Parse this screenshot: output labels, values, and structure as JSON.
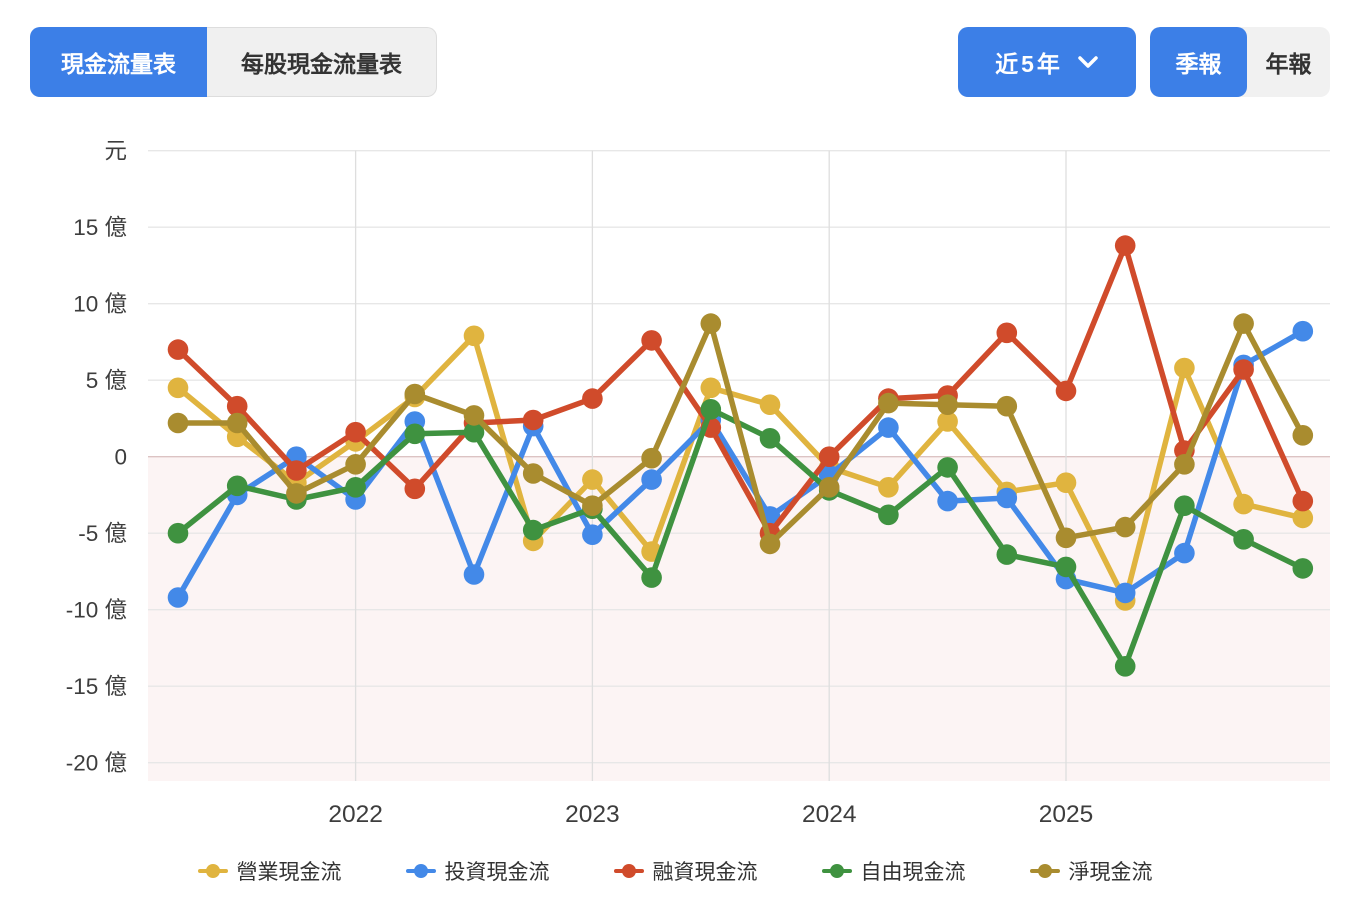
{
  "header": {
    "tabs": [
      {
        "label": "現金流量表",
        "active": true
      },
      {
        "label": "每股現金流量表",
        "active": false
      }
    ],
    "range_dropdown": {
      "label": "近5年",
      "icon": "chevron-down-icon"
    },
    "period_toggle": [
      {
        "label": "季報",
        "active": true
      },
      {
        "label": "年報",
        "active": false
      }
    ]
  },
  "colors": {
    "accent_blue": "#3C7FE7",
    "inactive_bg": "#F0F0F0",
    "grid_line": "#E7E7E7",
    "zero_line": "#DCC3C3",
    "year_line": "#DEDEDE",
    "axis_text": "#3D3D3D",
    "negative_region": "#FCF4F4"
  },
  "chart_data": {
    "type": "line",
    "unit_label": "元",
    "y_axis": {
      "tick_values": [
        15,
        10,
        5,
        0,
        -5,
        -10,
        -15,
        -20
      ],
      "tick_suffix": " 億",
      "gridline_values": [
        20,
        15,
        10,
        5,
        0,
        -5,
        -10,
        -15,
        -20
      ],
      "ylim": [
        -21.2,
        20
      ]
    },
    "x_axis": {
      "num_points": 20,
      "year_ticks": [
        {
          "label": "2022",
          "point_index": 3
        },
        {
          "label": "2023",
          "point_index": 7
        },
        {
          "label": "2024",
          "point_index": 11
        },
        {
          "label": "2025",
          "point_index": 15
        }
      ]
    },
    "series": [
      {
        "name": "營業現金流",
        "color": "#E0B43F",
        "values": [
          4.5,
          1.3,
          -1.7,
          1.0,
          3.9,
          7.9,
          -5.5,
          -1.5,
          -6.2,
          4.5,
          3.4,
          -0.7,
          -2.0,
          2.3,
          -2.3,
          -1.7,
          -9.4,
          5.8,
          -3.1,
          -4.0
        ]
      },
      {
        "name": "投資現金流",
        "color": "#4389E8",
        "values": [
          -9.2,
          -2.5,
          0.0,
          -2.8,
          2.3,
          -7.7,
          2.0,
          -5.1,
          -1.5,
          2.4,
          -3.9,
          -1.2,
          1.9,
          -2.9,
          -2.7,
          -8.0,
          -8.9,
          -6.3,
          6.0,
          8.2
        ]
      },
      {
        "name": "融資現金流",
        "color": "#D04B2B",
        "values": [
          7.0,
          3.3,
          -0.9,
          1.6,
          -2.1,
          2.2,
          2.4,
          3.8,
          7.6,
          1.9,
          -5.0,
          0.0,
          3.8,
          4.0,
          8.1,
          4.3,
          13.8,
          0.4,
          5.7,
          -2.9
        ]
      },
      {
        "name": "自由現金流",
        "color": "#3F9240",
        "values": [
          -5.0,
          -1.9,
          -2.8,
          -2.0,
          1.5,
          1.6,
          -4.8,
          -3.4,
          -7.9,
          3.1,
          1.2,
          -2.2,
          -3.8,
          -0.7,
          -6.4,
          -7.2,
          -13.7,
          -3.2,
          -5.4,
          -7.3
        ]
      },
      {
        "name": "淨現金流",
        "color": "#A98C2F",
        "values": [
          2.2,
          2.2,
          -2.4,
          -0.5,
          4.1,
          2.7,
          -1.1,
          -3.2,
          -0.1,
          8.7,
          -5.7,
          -2.0,
          3.5,
          3.4,
          3.3,
          -5.3,
          -4.6,
          -0.5,
          8.7,
          1.4
        ]
      }
    ],
    "legend_position": "bottom",
    "grid": true
  }
}
